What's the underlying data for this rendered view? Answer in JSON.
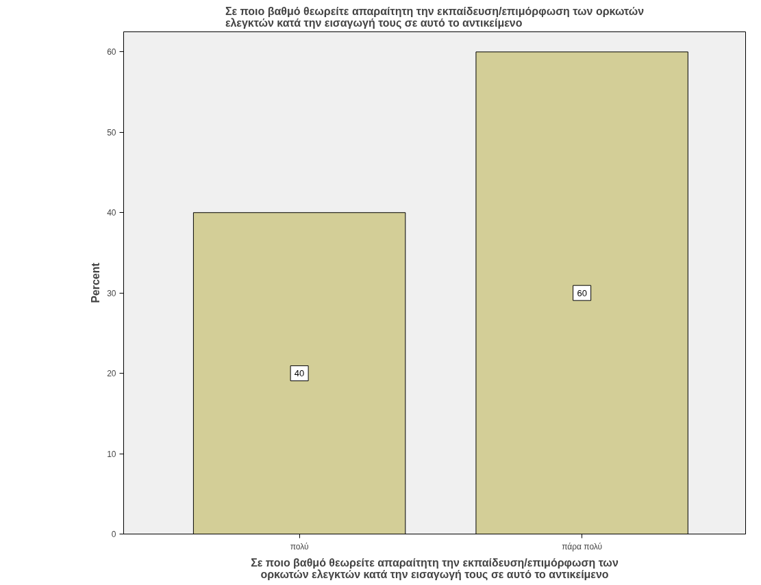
{
  "chart_data": {
    "type": "bar",
    "title": "Σε ποιο βαθμό θεωρείτε απαραίτητη την εκπαίδευση/επιμόρφωση των ορκωτών ελεγκτών κατά την εισαγωγή τους σε αυτό το αντικείμενο",
    "xlabel": "Σε ποιο βαθμό θεωρείτε απαραίτητη την εκπαίδευση/επιμόρφωση των ορκωτών ελεγκτών κατά την εισαγωγή τους σε αυτό το αντικείμενο",
    "ylabel": "Percent",
    "categories": [
      "πολύ",
      "πάρα πολύ"
    ],
    "values": [
      40,
      60
    ],
    "color": "#d3ce97",
    "ylim": [
      0,
      62.5
    ],
    "yticks": [
      0,
      10,
      20,
      30,
      40,
      50,
      60
    ],
    "grid": false,
    "data_labels": true
  }
}
